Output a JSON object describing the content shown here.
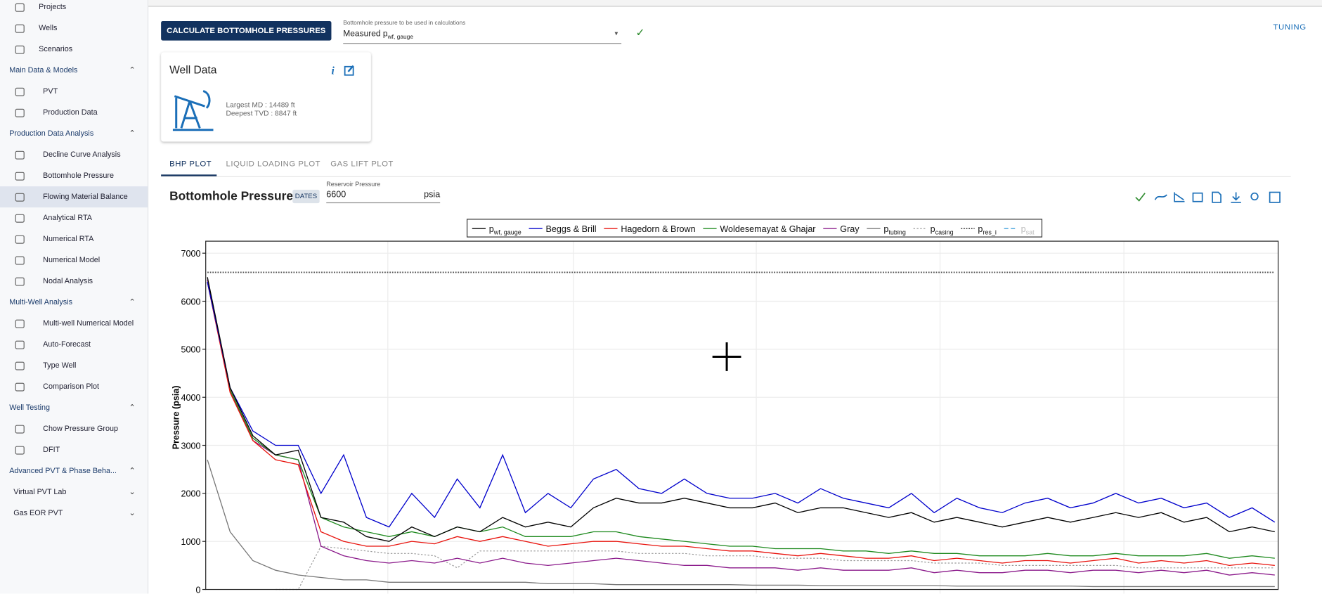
{
  "sidebar": {
    "top": [
      "Projects",
      "Wells",
      "Scenarios"
    ],
    "groups": [
      {
        "title": "Main Data & Models",
        "items": [
          "PVT",
          "Production Data"
        ]
      },
      {
        "title": "Production Data Analysis",
        "items": [
          "Decline Curve Analysis",
          "Bottomhole Pressure",
          "Flowing Material Balance",
          "Analytical RTA",
          "Numerical RTA",
          "Numerical Model",
          "Nodal Analysis"
        ]
      },
      {
        "title": "Multi-Well Analysis",
        "items": [
          "Multi-well Numerical Model",
          "Auto-Forecast",
          "Type Well",
          "Comparison Plot"
        ]
      },
      {
        "title": "Well Testing",
        "items": [
          "Chow Pressure Group",
          "DFIT"
        ]
      },
      {
        "title": "Advanced PVT & Phase Beha...",
        "items": []
      }
    ],
    "collapsed": [
      "Virtual PVT Lab",
      "Gas EOR PVT"
    ]
  },
  "toolbar": {
    "button": "CALCULATE BOTTOMHOLE PRESSURES",
    "select_label": "Bottomhole pressure to be used in calculations",
    "select_value": "Measured p",
    "select_value_sub": "wf, gauge",
    "tuning": "TUNING"
  },
  "well_card": {
    "title": "Well Data",
    "info": "i",
    "md_label": "Largest MD :",
    "md": 14489,
    "md_unit": "ft",
    "tvd_label": "Deepest TVD :",
    "tvd": 8847,
    "tvd_unit": "ft"
  },
  "tabs": [
    "BHP PLOT",
    "LIQUID LOADING PLOT",
    "GAS LIFT PLOT"
  ],
  "plot_header": {
    "dates": "DATES",
    "res_label": "Reservoir Pressure",
    "res_value": 6600,
    "res_unit": "psia"
  },
  "chart_data": {
    "type": "line",
    "title": "Bottomhole Pressure",
    "ylabel": "Pressure (psia)",
    "categories": [
      null,
      null,
      null,
      null,
      null,
      null,
      null,
      null,
      null,
      null,
      null,
      null,
      null,
      null,
      null,
      null,
      null,
      null,
      null,
      null,
      null,
      null,
      null,
      null,
      null,
      null,
      null,
      null,
      null,
      null,
      null,
      null,
      null,
      null,
      null,
      null,
      null,
      null,
      null,
      null,
      null,
      null,
      null,
      null,
      null,
      null,
      null,
      null
    ],
    "ylim": [
      0,
      7250
    ],
    "yticks": [
      0,
      1000,
      2000,
      3000,
      4000,
      5000,
      6000,
      7000
    ],
    "grid": true,
    "series": [
      {
        "name": "p",
        "name_sub": "wf, gauge",
        "color": "#000000",
        "style": "solid",
        "values": [
          6500,
          4200,
          3200,
          2800,
          2900,
          1500,
          1400,
          1100,
          1000,
          1300,
          1100,
          1300,
          1200,
          1500,
          1300,
          1400,
          1300,
          1700,
          1900,
          1800,
          1800,
          1900,
          1800,
          1700,
          1700,
          1800,
          1600,
          1700,
          1700,
          1600,
          1500,
          1600,
          1400,
          1500,
          1400,
          1300,
          1400,
          1500,
          1400,
          1500,
          1600,
          1500,
          1600,
          1400,
          1500,
          1200,
          1300,
          1200
        ]
      },
      {
        "name": "Beggs & Brill",
        "color": "#0000cc",
        "style": "solid",
        "values": [
          6400,
          4200,
          3300,
          3000,
          3000,
          2000,
          2800,
          1500,
          1300,
          2000,
          1500,
          2300,
          1700,
          2800,
          1600,
          2000,
          1700,
          2300,
          2500,
          2100,
          2000,
          2300,
          2000,
          1900,
          1900,
          2000,
          1800,
          2100,
          1900,
          1800,
          1700,
          2000,
          1600,
          1900,
          1700,
          1600,
          1800,
          1900,
          1700,
          1800,
          2000,
          1800,
          1900,
          1700,
          1800,
          1500,
          1700,
          1400
        ]
      },
      {
        "name": "Hagedorn & Brown",
        "color": "#e8120c",
        "style": "solid",
        "values": [
          6400,
          4100,
          3100,
          2700,
          2600,
          1200,
          1000,
          900,
          900,
          1000,
          950,
          1100,
          1000,
          1100,
          1000,
          900,
          950,
          1000,
          1000,
          950,
          900,
          900,
          850,
          800,
          800,
          750,
          700,
          750,
          700,
          650,
          650,
          700,
          600,
          650,
          600,
          550,
          600,
          600,
          550,
          600,
          650,
          550,
          600,
          550,
          600,
          500,
          550,
          500
        ]
      },
      {
        "name": "Woldesemayat & Ghajar",
        "color": "#1f8a1f",
        "style": "solid",
        "values": [
          6400,
          4150,
          3150,
          2800,
          2700,
          1500,
          1300,
          1200,
          1100,
          1200,
          1100,
          1300,
          1200,
          1300,
          1100,
          1100,
          1100,
          1200,
          1200,
          1100,
          1050,
          1000,
          950,
          900,
          900,
          850,
          850,
          850,
          800,
          800,
          750,
          800,
          750,
          750,
          700,
          700,
          700,
          750,
          700,
          700,
          750,
          700,
          700,
          700,
          750,
          650,
          700,
          650
        ]
      },
      {
        "name": "Gray",
        "color": "#8b1a8b",
        "style": "solid",
        "values": [
          6450,
          4150,
          3100,
          2800,
          2700,
          900,
          700,
          600,
          550,
          600,
          550,
          650,
          550,
          650,
          550,
          500,
          550,
          600,
          650,
          600,
          550,
          500,
          500,
          450,
          450,
          450,
          400,
          450,
          400,
          400,
          400,
          450,
          350,
          400,
          350,
          350,
          400,
          400,
          350,
          400,
          400,
          350,
          400,
          350,
          400,
          300,
          350,
          300
        ]
      },
      {
        "name": "p",
        "name_sub": "tubing",
        "color": "#777777",
        "style": "solid",
        "values": [
          2700,
          1200,
          600,
          400,
          300,
          250,
          200,
          200,
          150,
          150,
          150,
          150,
          150,
          150,
          150,
          120,
          120,
          120,
          100,
          100,
          100,
          100,
          100,
          100,
          90,
          90,
          90,
          80,
          80,
          80,
          80,
          80,
          80,
          70,
          70,
          70,
          70,
          70,
          70,
          60,
          60,
          60,
          60,
          60,
          60,
          60,
          60,
          60
        ]
      },
      {
        "name": "p",
        "name_sub": "casing",
        "color": "#999999",
        "style": "dotted",
        "values": [
          null,
          null,
          null,
          0,
          0,
          900,
          850,
          800,
          750,
          750,
          700,
          450,
          800,
          800,
          800,
          800,
          800,
          800,
          800,
          750,
          750,
          750,
          700,
          700,
          700,
          650,
          650,
          650,
          600,
          600,
          600,
          600,
          550,
          550,
          550,
          500,
          500,
          500,
          500,
          500,
          500,
          450,
          450,
          450,
          450,
          450,
          450,
          450
        ]
      },
      {
        "name": "p",
        "name_sub": "res_i",
        "color": "#555555",
        "style": "dense",
        "values": [
          6600,
          6600,
          6600,
          6600,
          6600,
          6600,
          6600,
          6600,
          6600,
          6600,
          6600,
          6600,
          6600,
          6600,
          6600,
          6600,
          6600,
          6600,
          6600,
          6600,
          6600,
          6600,
          6600,
          6600,
          6600,
          6600,
          6600,
          6600,
          6600,
          6600,
          6600,
          6600,
          6600,
          6600,
          6600,
          6600,
          6600,
          6600,
          6600,
          6600,
          6600,
          6600,
          6600,
          6600,
          6600,
          6600,
          6600,
          6600
        ]
      }
    ],
    "legend_hidden": [
      {
        "name": "p",
        "name_sub": "sat",
        "color": "#5aaee0"
      }
    ]
  }
}
